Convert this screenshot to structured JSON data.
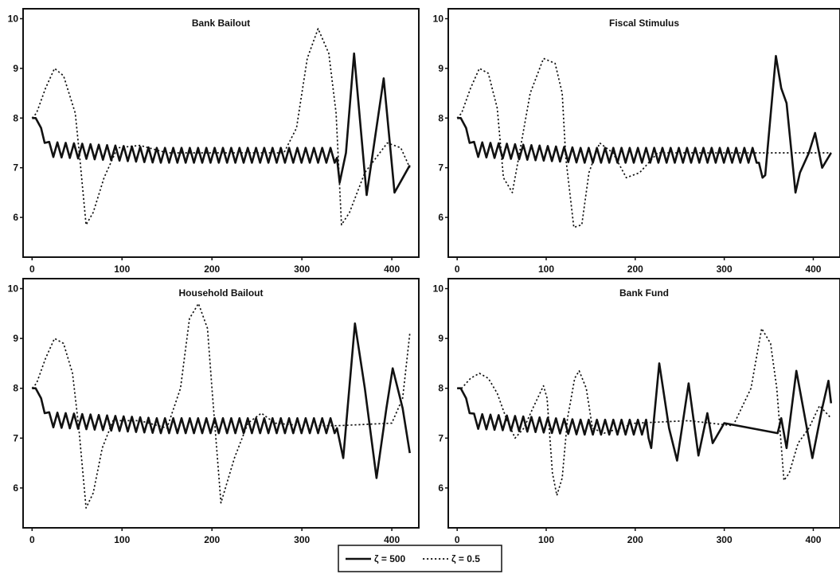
{
  "chart_data": {
    "type": "line",
    "legend": {
      "placement": "bottom-center",
      "items": [
        {
          "label": "ζ = 500",
          "style": "solid"
        },
        {
          "label": "ζ = 0.5",
          "style": "dotted"
        }
      ]
    },
    "panels": [
      {
        "title": "Bank Bailout",
        "xlim": [
          -10,
          430
        ],
        "ylim": [
          5.2,
          10.2
        ],
        "xticks": [
          0,
          100,
          200,
          300,
          400
        ],
        "yticks": [
          6,
          7,
          8,
          9,
          10
        ],
        "series": [
          {
            "style": "solid",
            "points": [
              [
                0,
                8.0
              ],
              [
                4,
                8.0
              ],
              [
                10,
                7.8
              ],
              [
                14,
                7.5
              ],
              [
                19,
                7.5
              ],
              [
                339,
                7.2
              ],
              [
                342,
                6.7
              ],
              [
                349,
                7.3
              ],
              [
                358,
                9.3
              ],
              [
                372,
                6.45
              ],
              [
                391,
                8.8
              ],
              [
                403,
                6.5
              ],
              [
                420,
                7.05
              ]
            ]
          },
          {
            "style": "dotted",
            "points": [
              [
                0,
                8.0
              ],
              [
                5,
                8.1
              ],
              [
                15,
                8.6
              ],
              [
                25,
                9.0
              ],
              [
                35,
                8.85
              ],
              [
                48,
                8.1
              ],
              [
                53,
                7.2
              ],
              [
                60,
                5.85
              ],
              [
                68,
                6.1
              ],
              [
                80,
                6.8
              ],
              [
                95,
                7.4
              ],
              [
                120,
                7.45
              ],
              [
                150,
                7.3
              ],
              [
                200,
                7.3
              ],
              [
                280,
                7.3
              ],
              [
                294,
                7.8
              ],
              [
                306,
                9.2
              ],
              [
                318,
                9.8
              ],
              [
                330,
                9.3
              ],
              [
                338,
                8.1
              ],
              [
                344,
                5.85
              ],
              [
                353,
                6.1
              ],
              [
                370,
                6.9
              ],
              [
                395,
                7.5
              ],
              [
                410,
                7.4
              ],
              [
                420,
                7.0
              ]
            ]
          }
        ]
      },
      {
        "title": "Fiscal Stimulus",
        "xlim": [
          -10,
          430
        ],
        "ylim": [
          5.2,
          10.2
        ],
        "xticks": [
          0,
          100,
          200,
          300,
          400
        ],
        "yticks": [
          6,
          7,
          8,
          9,
          10
        ],
        "series": [
          {
            "style": "solid",
            "points": [
              [
                0,
                8.0
              ],
              [
                4,
                8.0
              ],
              [
                10,
                7.8
              ],
              [
                14,
                7.5
              ],
              [
                19,
                7.5
              ],
              [
                339,
                7.1
              ],
              [
                343,
                6.8
              ],
              [
                346,
                6.85
              ],
              [
                358,
                9.25
              ],
              [
                364,
                8.6
              ],
              [
                370,
                8.3
              ],
              [
                380,
                6.5
              ],
              [
                385,
                6.9
              ],
              [
                395,
                7.3
              ],
              [
                402,
                7.7
              ],
              [
                410,
                7.0
              ],
              [
                420,
                7.3
              ]
            ]
          },
          {
            "style": "dotted",
            "points": [
              [
                0,
                8.0
              ],
              [
                5,
                8.1
              ],
              [
                15,
                8.6
              ],
              [
                25,
                9.0
              ],
              [
                35,
                8.9
              ],
              [
                45,
                8.2
              ],
              [
                52,
                6.8
              ],
              [
                62,
                6.5
              ],
              [
                70,
                7.3
              ],
              [
                82,
                8.5
              ],
              [
                97,
                9.2
              ],
              [
                110,
                9.1
              ],
              [
                118,
                8.5
              ],
              [
                122,
                7.2
              ],
              [
                131,
                5.8
              ],
              [
                140,
                5.85
              ],
              [
                148,
                6.9
              ],
              [
                160,
                7.5
              ],
              [
                175,
                7.3
              ],
              [
                190,
                6.8
              ],
              [
                205,
                6.9
              ],
              [
                225,
                7.3
              ],
              [
                260,
                7.3
              ],
              [
                340,
                7.3
              ],
              [
                420,
                7.3
              ]
            ]
          }
        ]
      },
      {
        "title": "Household Bailout",
        "xlim": [
          -10,
          430
        ],
        "ylim": [
          5.2,
          10.2
        ],
        "xticks": [
          0,
          100,
          200,
          300,
          400
        ],
        "yticks": [
          6,
          7,
          8,
          9,
          10
        ],
        "series": [
          {
            "style": "solid",
            "points": [
              [
                0,
                8.0
              ],
              [
                4,
                8.0
              ],
              [
                10,
                7.8
              ],
              [
                14,
                7.5
              ],
              [
                19,
                7.5
              ],
              [
                339,
                7.2
              ],
              [
                346,
                6.6
              ],
              [
                359,
                9.3
              ],
              [
                370,
                8.0
              ],
              [
                383,
                6.2
              ],
              [
                394,
                7.6
              ],
              [
                401,
                8.4
              ],
              [
                412,
                7.6
              ],
              [
                420,
                6.7
              ]
            ]
          },
          {
            "style": "dotted",
            "points": [
              [
                0,
                8.0
              ],
              [
                5,
                8.1
              ],
              [
                15,
                8.6
              ],
              [
                25,
                9.0
              ],
              [
                35,
                8.9
              ],
              [
                45,
                8.3
              ],
              [
                52,
                7.2
              ],
              [
                60,
                5.6
              ],
              [
                68,
                5.9
              ],
              [
                78,
                6.8
              ],
              [
                90,
                7.35
              ],
              [
                120,
                7.35
              ],
              [
                150,
                7.2
              ],
              [
                165,
                8.0
              ],
              [
                175,
                9.4
              ],
              [
                185,
                9.7
              ],
              [
                195,
                9.2
              ],
              [
                200,
                8.0
              ],
              [
                210,
                5.7
              ],
              [
                225,
                6.6
              ],
              [
                240,
                7.3
              ],
              [
                255,
                7.5
              ],
              [
                270,
                7.3
              ],
              [
                300,
                7.25
              ],
              [
                340,
                7.25
              ],
              [
                400,
                7.3
              ],
              [
                412,
                7.8
              ],
              [
                420,
                9.1
              ]
            ]
          }
        ]
      },
      {
        "title": "Bank Fund",
        "xlim": [
          -10,
          430
        ],
        "ylim": [
          5.2,
          10.2
        ],
        "xticks": [
          0,
          100,
          200,
          300,
          400
        ],
        "yticks": [
          6,
          7,
          8,
          9,
          10
        ],
        "series": [
          {
            "style": "solid",
            "points": [
              [
                0,
                8.0
              ],
              [
                4,
                8.0
              ],
              [
                10,
                7.8
              ],
              [
                14,
                7.5
              ],
              [
                19,
                7.5
              ],
              [
                215,
                7.0
              ],
              [
                218,
                6.8
              ],
              [
                227,
                8.5
              ],
              [
                238,
                7.2
              ],
              [
                247,
                6.55
              ],
              [
                260,
                8.1
              ],
              [
                271,
                6.65
              ],
              [
                281,
                7.5
              ],
              [
                287,
                6.9
              ],
              [
                300,
                7.3
              ],
              [
                360,
                7.1
              ],
              [
                364,
                7.4
              ],
              [
                370,
                6.8
              ],
              [
                381,
                8.35
              ],
              [
                399,
                6.6
              ],
              [
                410,
                7.6
              ],
              [
                417,
                8.15
              ],
              [
                420,
                7.7
              ]
            ]
          },
          {
            "style": "dotted",
            "points": [
              [
                0,
                8.0
              ],
              [
                5,
                8.0
              ],
              [
                15,
                8.2
              ],
              [
                25,
                8.3
              ],
              [
                35,
                8.2
              ],
              [
                45,
                7.9
              ],
              [
                55,
                7.4
              ],
              [
                65,
                7.0
              ],
              [
                75,
                7.2
              ],
              [
                85,
                7.6
              ],
              [
                97,
                8.05
              ],
              [
                101,
                7.8
              ],
              [
                107,
                6.3
              ],
              [
                112,
                5.85
              ],
              [
                118,
                6.2
              ],
              [
                124,
                7.4
              ],
              [
                132,
                8.2
              ],
              [
                137,
                8.35
              ],
              [
                145,
                8.0
              ],
              [
                152,
                7.2
              ],
              [
                165,
                7.1
              ],
              [
                200,
                7.3
              ],
              [
                260,
                7.35
              ],
              [
                310,
                7.25
              ],
              [
                330,
                8.0
              ],
              [
                342,
                9.2
              ],
              [
                352,
                8.9
              ],
              [
                359,
                8.0
              ],
              [
                367,
                6.15
              ],
              [
                373,
                6.3
              ],
              [
                383,
                6.9
              ],
              [
                395,
                7.2
              ],
              [
                407,
                7.65
              ],
              [
                420,
                7.4
              ]
            ]
          }
        ]
      }
    ]
  }
}
